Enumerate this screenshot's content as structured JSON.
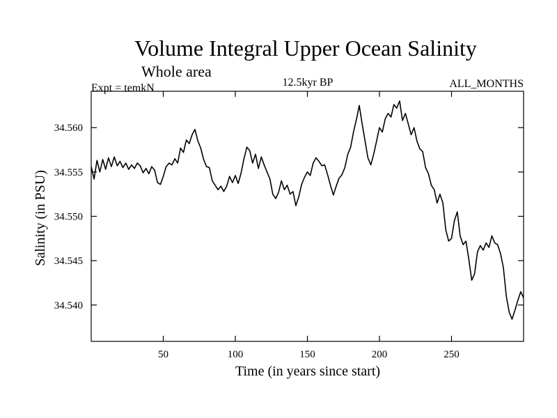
{
  "chart_data": {
    "type": "line",
    "title": "Volume Integral Upper Ocean Salinity",
    "subtitle": "Whole area",
    "annotations": {
      "left": "Expt = temkN",
      "center": "12.5kyr BP",
      "right": "ALL_MONTHS"
    },
    "xlabel": "Time (in years since start)",
    "ylabel": "Salinity (in PSU)",
    "xlim": [
      0,
      300
    ],
    "ylim": [
      34.5359,
      34.5641
    ],
    "xticks": [
      50,
      100,
      150,
      200,
      250
    ],
    "xtick_labels": [
      "50",
      "100",
      "150",
      "200",
      "250"
    ],
    "yticks": [
      34.54,
      34.545,
      34.55,
      34.555,
      34.56
    ],
    "ytick_labels": [
      "34.540",
      "34.545",
      "34.550",
      "34.555",
      "34.560"
    ],
    "grid": false,
    "series": [
      {
        "name": "salinity",
        "color": "#000000",
        "points": [
          [
            0,
            34.5556
          ],
          [
            2,
            34.5542
          ],
          [
            4,
            34.5563
          ],
          [
            6,
            34.555
          ],
          [
            8,
            34.5564
          ],
          [
            10,
            34.5553
          ],
          [
            12,
            34.5566
          ],
          [
            14,
            34.5556
          ],
          [
            16,
            34.5567
          ],
          [
            18,
            34.5557
          ],
          [
            20,
            34.5562
          ],
          [
            22,
            34.5555
          ],
          [
            24,
            34.556
          ],
          [
            26,
            34.5553
          ],
          [
            28,
            34.5558
          ],
          [
            30,
            34.5554
          ],
          [
            32,
            34.556
          ],
          [
            34,
            34.5557
          ],
          [
            36,
            34.5549
          ],
          [
            38,
            34.5554
          ],
          [
            40,
            34.5548
          ],
          [
            42,
            34.5556
          ],
          [
            44,
            34.5552
          ],
          [
            46,
            34.5538
          ],
          [
            48,
            34.5536
          ],
          [
            50,
            34.5545
          ],
          [
            52,
            34.5556
          ],
          [
            54,
            34.556
          ],
          [
            56,
            34.5558
          ],
          [
            58,
            34.5565
          ],
          [
            60,
            34.556
          ],
          [
            62,
            34.5577
          ],
          [
            64,
            34.5572
          ],
          [
            66,
            34.5586
          ],
          [
            68,
            34.5582
          ],
          [
            70,
            34.5592
          ],
          [
            72,
            34.5598
          ],
          [
            74,
            34.5585
          ],
          [
            76,
            34.5577
          ],
          [
            78,
            34.5564
          ],
          [
            80,
            34.5556
          ],
          [
            82,
            34.5555
          ],
          [
            84,
            34.554
          ],
          [
            86,
            34.5535
          ],
          [
            88,
            34.553
          ],
          [
            90,
            34.5534
          ],
          [
            92,
            34.5528
          ],
          [
            94,
            34.5534
          ],
          [
            96,
            34.5545
          ],
          [
            98,
            34.5538
          ],
          [
            100,
            34.5546
          ],
          [
            102,
            34.5537
          ],
          [
            104,
            34.5549
          ],
          [
            106,
            34.5565
          ],
          [
            108,
            34.5578
          ],
          [
            110,
            34.5574
          ],
          [
            112,
            34.556
          ],
          [
            114,
            34.557
          ],
          [
            116,
            34.5554
          ],
          [
            118,
            34.5567
          ],
          [
            120,
            34.5558
          ],
          [
            122,
            34.555
          ],
          [
            124,
            34.5542
          ],
          [
            126,
            34.5525
          ],
          [
            128,
            34.552
          ],
          [
            130,
            34.5527
          ],
          [
            132,
            34.554
          ],
          [
            134,
            34.553
          ],
          [
            136,
            34.5535
          ],
          [
            138,
            34.5525
          ],
          [
            140,
            34.5528
          ],
          [
            142,
            34.5512
          ],
          [
            144,
            34.5522
          ],
          [
            146,
            34.5536
          ],
          [
            148,
            34.5544
          ],
          [
            150,
            34.555
          ],
          [
            152,
            34.5546
          ],
          [
            154,
            34.556
          ],
          [
            156,
            34.5566
          ],
          [
            158,
            34.5562
          ],
          [
            160,
            34.5557
          ],
          [
            162,
            34.5558
          ],
          [
            164,
            34.5547
          ],
          [
            166,
            34.5535
          ],
          [
            168,
            34.5524
          ],
          [
            170,
            34.5534
          ],
          [
            172,
            34.5543
          ],
          [
            174,
            34.5547
          ],
          [
            176,
            34.5555
          ],
          [
            178,
            34.557
          ],
          [
            180,
            34.5578
          ],
          [
            182,
            34.5595
          ],
          [
            184,
            34.5609
          ],
          [
            186,
            34.5625
          ],
          [
            188,
            34.5604
          ],
          [
            190,
            34.5585
          ],
          [
            192,
            34.5566
          ],
          [
            194,
            34.5558
          ],
          [
            196,
            34.557
          ],
          [
            198,
            34.5585
          ],
          [
            200,
            34.56
          ],
          [
            202,
            34.5595
          ],
          [
            204,
            34.561
          ],
          [
            206,
            34.5616
          ],
          [
            208,
            34.5612
          ],
          [
            210,
            34.5626
          ],
          [
            212,
            34.5622
          ],
          [
            214,
            34.563
          ],
          [
            216,
            34.5608
          ],
          [
            218,
            34.5616
          ],
          [
            220,
            34.5604
          ],
          [
            222,
            34.5592
          ],
          [
            224,
            34.56
          ],
          [
            226,
            34.5585
          ],
          [
            228,
            34.5576
          ],
          [
            230,
            34.5573
          ],
          [
            232,
            34.5555
          ],
          [
            234,
            34.5548
          ],
          [
            236,
            34.5535
          ],
          [
            238,
            34.553
          ],
          [
            240,
            34.5515
          ],
          [
            242,
            34.5525
          ],
          [
            244,
            34.5515
          ],
          [
            246,
            34.5485
          ],
          [
            248,
            34.5472
          ],
          [
            250,
            34.5475
          ],
          [
            252,
            34.5495
          ],
          [
            254,
            34.5505
          ],
          [
            256,
            34.5478
          ],
          [
            258,
            34.5468
          ],
          [
            260,
            34.5472
          ],
          [
            262,
            34.5452
          ],
          [
            264,
            34.5428
          ],
          [
            266,
            34.5435
          ],
          [
            268,
            34.546
          ],
          [
            270,
            34.5467
          ],
          [
            272,
            34.5462
          ],
          [
            274,
            34.547
          ],
          [
            276,
            34.5465
          ],
          [
            278,
            34.5478
          ],
          [
            280,
            34.547
          ],
          [
            282,
            34.5468
          ],
          [
            284,
            34.5458
          ],
          [
            286,
            34.5442
          ],
          [
            288,
            34.541
          ],
          [
            290,
            34.5392
          ],
          [
            292,
            34.5384
          ],
          [
            294,
            34.5394
          ],
          [
            296,
            34.5405
          ],
          [
            298,
            34.5415
          ],
          [
            300,
            34.5408
          ]
        ]
      }
    ]
  }
}
